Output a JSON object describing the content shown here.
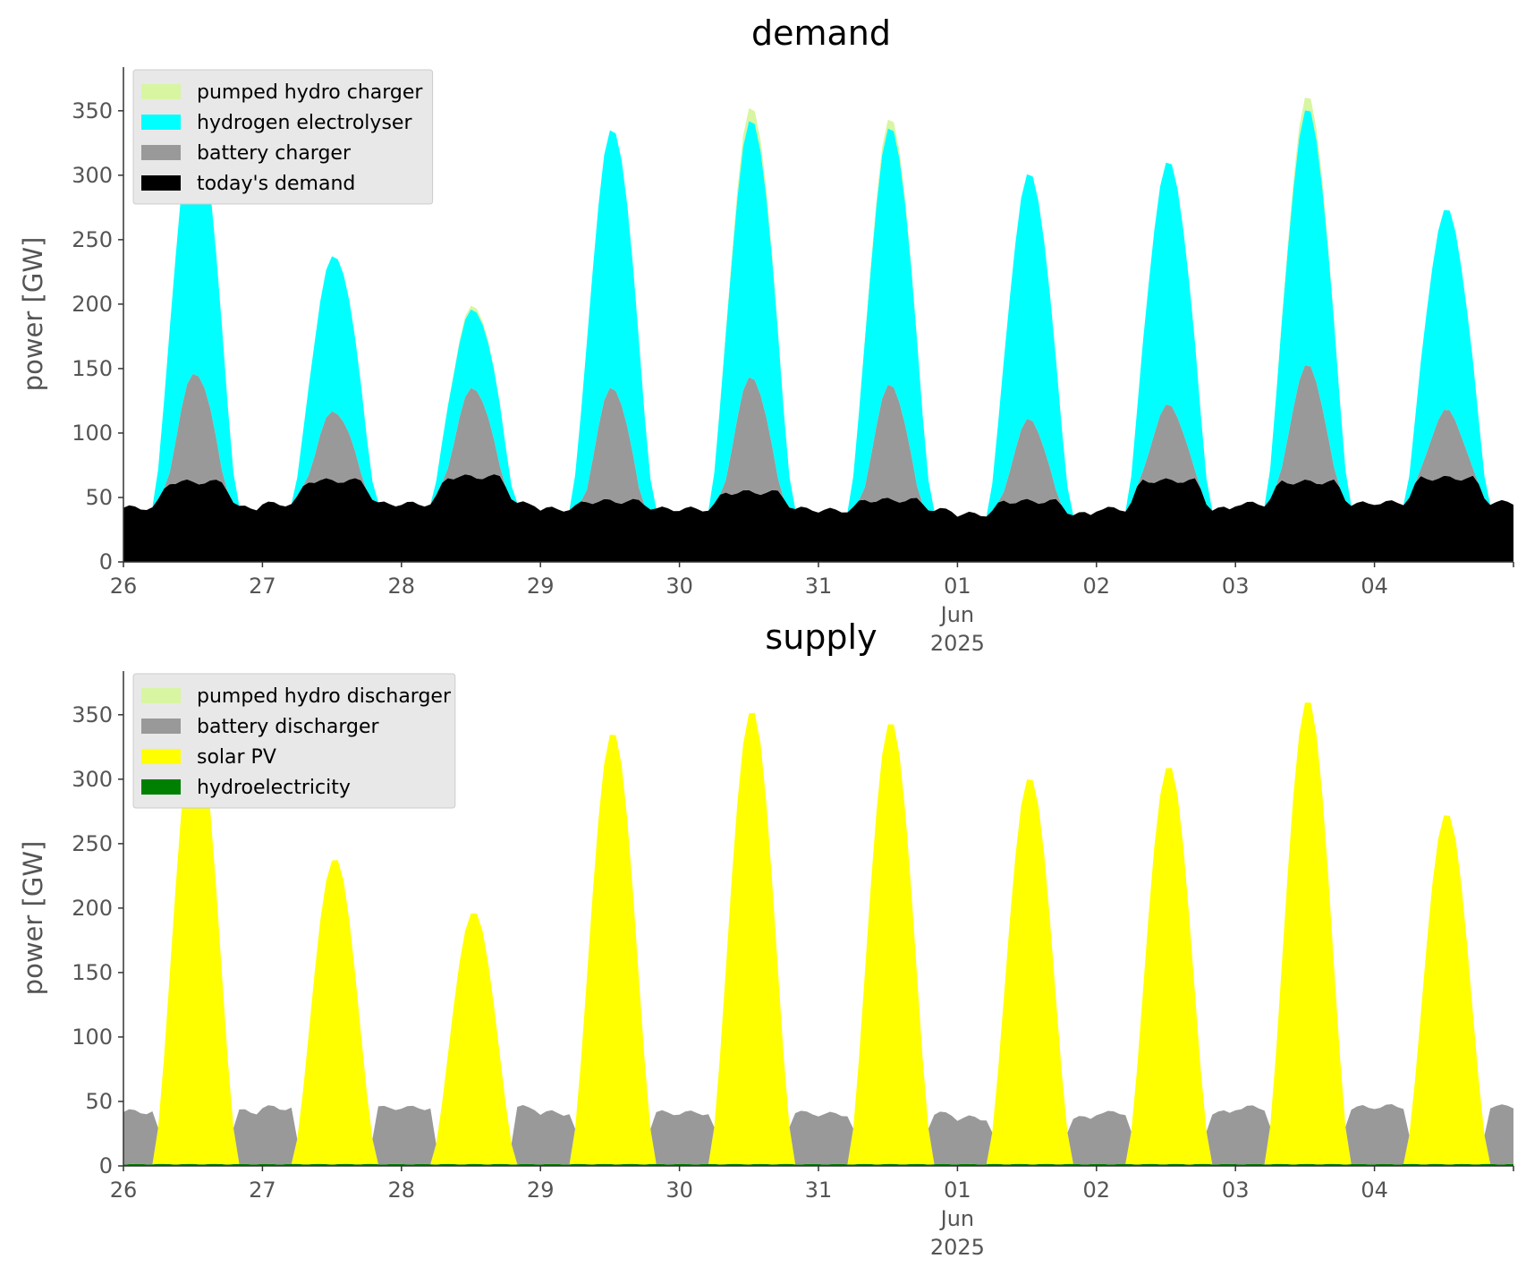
{
  "chart_data": [
    {
      "type": "area",
      "title": "demand",
      "ylabel": "power [GW]",
      "ylim": [
        0,
        370
      ],
      "yticks": [
        "0",
        "50",
        "100",
        "150",
        "200",
        "250",
        "300",
        "350"
      ],
      "xticks": [
        "26",
        "27",
        "28",
        "29",
        "30",
        "31",
        "01",
        "02",
        "03",
        "04"
      ],
      "xtick_sub": [
        "Jun",
        "2025"
      ],
      "legend_position": "top-left",
      "stacked": true,
      "series": [
        {
          "name": "today's demand",
          "color": "#000000",
          "key": "demand"
        },
        {
          "name": "battery charger",
          "color": "#999999",
          "key": "battery"
        },
        {
          "name": "hydrogen electrolyser",
          "color": "#00ffff",
          "key": "h2"
        },
        {
          "name": "pumped hydro charger",
          "color": "#d8f5a2",
          "key": "phc"
        }
      ],
      "legend_order": [
        "pumped hydro charger",
        "hydrogen electrolyser",
        "battery charger",
        "today's demand"
      ]
    },
    {
      "type": "area",
      "title": "supply",
      "ylabel": "power [GW]",
      "ylim": [
        0,
        370
      ],
      "yticks": [
        "0",
        "50",
        "100",
        "150",
        "200",
        "250",
        "300",
        "350"
      ],
      "xticks": [
        "26",
        "27",
        "28",
        "29",
        "30",
        "31",
        "01",
        "02",
        "03",
        "04"
      ],
      "xtick_sub": [
        "Jun",
        "2025"
      ],
      "legend_position": "top-left",
      "stacked": true,
      "series": [
        {
          "name": "hydroelectricity",
          "color": "#008000",
          "key": "hydro"
        },
        {
          "name": "solar PV",
          "color": "#ffff00",
          "key": "solar"
        },
        {
          "name": "battery discharger",
          "color": "#999999",
          "key": "bdis"
        },
        {
          "name": "pumped hydro discharger",
          "color": "#d8f5a2",
          "key": "phd"
        }
      ],
      "legend_order": [
        "pumped hydro discharger",
        "battery discharger",
        "solar PV",
        "hydroelectricity"
      ]
    }
  ],
  "days": [
    {
      "label": "26",
      "demand_base": 42,
      "demand_day": 62,
      "battery_peak": 147,
      "total_peak": 345,
      "solar_peak": 345,
      "ph_extra": 0
    },
    {
      "label": "27",
      "demand_base": 45,
      "demand_day": 63,
      "battery_peak": 117,
      "total_peak": 238,
      "solar_peak": 238,
      "ph_extra": 0
    },
    {
      "label": "28",
      "demand_base": 45,
      "demand_day": 66,
      "battery_peak": 135,
      "total_peak": 196,
      "solar_peak": 196,
      "ph_extra": 3
    },
    {
      "label": "29",
      "demand_base": 41,
      "demand_day": 47,
      "battery_peak": 135,
      "total_peak": 336,
      "solar_peak": 336,
      "ph_extra": 0
    },
    {
      "label": "30",
      "demand_base": 41,
      "demand_day": 54,
      "battery_peak": 143,
      "total_peak": 343,
      "solar_peak": 353,
      "ph_extra": 10
    },
    {
      "label": "31",
      "demand_base": 40,
      "demand_day": 48,
      "battery_peak": 137,
      "total_peak": 337,
      "solar_peak": 344,
      "ph_extra": 7
    },
    {
      "label": "01",
      "demand_base": 37,
      "demand_day": 47,
      "battery_peak": 110,
      "total_peak": 301,
      "solar_peak": 301,
      "ph_extra": 0
    },
    {
      "label": "02",
      "demand_base": 41,
      "demand_day": 63,
      "battery_peak": 121,
      "total_peak": 310,
      "solar_peak": 310,
      "ph_extra": 0
    },
    {
      "label": "03",
      "demand_base": 45,
      "demand_day": 62,
      "battery_peak": 152,
      "total_peak": 351,
      "solar_peak": 361,
      "ph_extra": 10
    },
    {
      "label": "04",
      "demand_base": 46,
      "demand_day": 65,
      "battery_peak": 117,
      "total_peak": 273,
      "solar_peak": 273,
      "ph_extra": 0
    }
  ]
}
